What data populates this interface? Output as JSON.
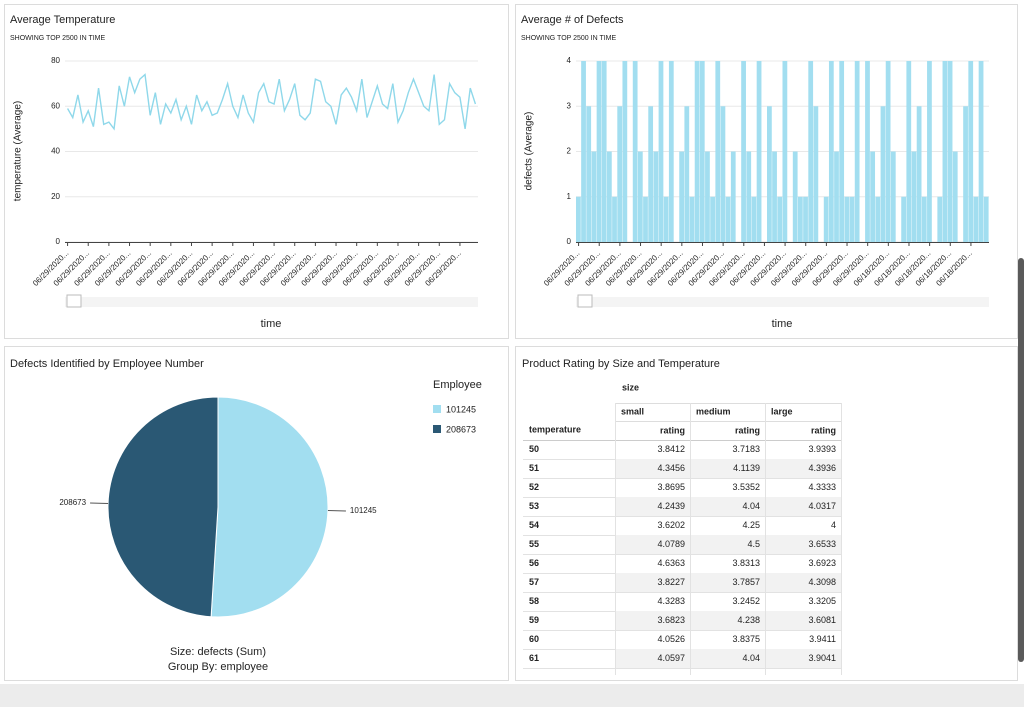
{
  "chart_data": [
    {
      "type": "line",
      "title": "Average Temperature",
      "subtitle": "SHOWING TOP 2500 IN TIME",
      "y_label": "temperature (Average)",
      "x_label": "time",
      "color": "#8fd8ea",
      "grid": true,
      "ylim": [
        0,
        80
      ],
      "yticks": [
        0,
        20,
        40,
        60,
        80
      ],
      "categories": [
        "06/29/2020...",
        null,
        null,
        null,
        "06/29/2020...",
        null,
        null,
        null,
        "06/29/2020...",
        null,
        null,
        null,
        "06/29/2020...",
        null,
        null,
        null,
        "06/29/2020...",
        null,
        null,
        null,
        "06/29/2020...",
        null,
        null,
        null,
        "06/29/2020...",
        null,
        null,
        null,
        "06/29/2020...",
        null,
        null,
        null,
        "06/29/2020...",
        null,
        null,
        null,
        "06/29/2020...",
        null,
        null,
        null,
        "06/29/2020...",
        null,
        null,
        null,
        "06/29/2020...",
        null,
        null,
        null,
        "06/29/2020...",
        null,
        null,
        null,
        "06/29/2020...",
        null,
        null,
        null,
        "06/29/2020...",
        null,
        null,
        null,
        "06/29/2020...",
        null,
        null,
        null,
        "06/29/2020...",
        null,
        null,
        null,
        "06/29/2020...",
        null,
        null,
        null,
        "06/29/2020...",
        null,
        null,
        null,
        "06/29/2020...",
        null,
        null,
        null
      ],
      "values": [
        59,
        55,
        65,
        53,
        58,
        51,
        68,
        52,
        53,
        50,
        69,
        60,
        73,
        66,
        72,
        74,
        56,
        66,
        52,
        61,
        57,
        63,
        54,
        60,
        52,
        65,
        58,
        62,
        56,
        57,
        63,
        70,
        60,
        55,
        65,
        57,
        53,
        66,
        70,
        62,
        61,
        72,
        58,
        63,
        70,
        56,
        54,
        57,
        72,
        71,
        62,
        60,
        52,
        65,
        68,
        64,
        58,
        72,
        55,
        62,
        69,
        61,
        59,
        70,
        53,
        58,
        66,
        72,
        66,
        60,
        58,
        74,
        52,
        54,
        70,
        66,
        64,
        50,
        68,
        61
      ]
    },
    {
      "type": "bar",
      "title": "Average # of Defects",
      "subtitle": "SHOWING TOP 2500 IN TIME",
      "y_label": "defects (Average)",
      "x_label": "time",
      "color": "#a2def0",
      "grid": true,
      "ylim": [
        0,
        4
      ],
      "yticks": [
        0,
        1,
        2,
        3,
        4
      ],
      "categories": [
        "06/29/2020...",
        null,
        null,
        null,
        "06/29/2020...",
        null,
        null,
        null,
        "06/29/2020...",
        null,
        null,
        null,
        "06/29/2020...",
        null,
        null,
        null,
        "06/29/2020...",
        null,
        null,
        null,
        "06/29/2020...",
        null,
        null,
        null,
        "06/29/2020...",
        null,
        null,
        null,
        "06/29/2020...",
        null,
        null,
        null,
        "06/29/2020...",
        null,
        null,
        null,
        "06/29/2020...",
        null,
        null,
        null,
        "06/29/2020...",
        null,
        null,
        null,
        "06/29/2020...",
        null,
        null,
        null,
        "06/29/2020...",
        null,
        null,
        null,
        "06/29/2020...",
        null,
        null,
        null,
        "06/29/2020...",
        null,
        null,
        null,
        "06/18/2020...",
        null,
        null,
        null,
        "06/18/2020...",
        null,
        null,
        null,
        "06/18/2020...",
        null,
        null,
        null,
        "06/18/2020...",
        null,
        null,
        null,
        "06/18/2020...",
        null,
        null,
        null
      ],
      "values": [
        1,
        4,
        3,
        2,
        4,
        4,
        2,
        1,
        3,
        4,
        0,
        4,
        2,
        1,
        3,
        2,
        4,
        1,
        4,
        0,
        2,
        3,
        1,
        4,
        4,
        2,
        1,
        4,
        3,
        1,
        2,
        0,
        4,
        2,
        1,
        4,
        0,
        3,
        2,
        1,
        4,
        0,
        2,
        1,
        1,
        4,
        3,
        0,
        1,
        4,
        2,
        4,
        1,
        1,
        4,
        0,
        4,
        2,
        1,
        3,
        4,
        2,
        0,
        1,
        4,
        2,
        3,
        1,
        4,
        0,
        1,
        4,
        4,
        2,
        0,
        3,
        4,
        1,
        4,
        1
      ]
    },
    {
      "type": "pie",
      "title": "Defects Identified by Employee Number",
      "legend_title": "Employee",
      "size_label": "Size: defects (Sum)",
      "group_label": "Group By: employee",
      "categories": [
        "101245",
        "208673"
      ],
      "values": [
        51,
        49
      ],
      "colors": [
        "#a2def0",
        "#2a5874"
      ]
    }
  ],
  "table": {
    "title": "Product Rating by Size and Temperature",
    "column_group": "size",
    "row_header": "temperature",
    "measure": "rating",
    "columns": [
      "small",
      "medium",
      "large"
    ],
    "rows": [
      [
        50,
        3.8412,
        3.7183,
        3.9393
      ],
      [
        51,
        4.3456,
        4.1139,
        4.3936
      ],
      [
        52,
        3.8695,
        3.5352,
        4.3333
      ],
      [
        53,
        4.2439,
        4.04,
        4.0317
      ],
      [
        54,
        3.6202,
        4.25,
        4
      ],
      [
        55,
        4.0789,
        4.5,
        3.6533
      ],
      [
        56,
        4.6363,
        3.8313,
        3.6923
      ],
      [
        57,
        3.8227,
        3.7857,
        4.3098
      ],
      [
        58,
        4.3283,
        3.2452,
        3.3205
      ],
      [
        59,
        3.6823,
        4.238,
        3.6081
      ],
      [
        60,
        4.0526,
        3.8375,
        3.9411
      ],
      [
        61,
        4.0597,
        4.04,
        3.9041
      ]
    ]
  }
}
